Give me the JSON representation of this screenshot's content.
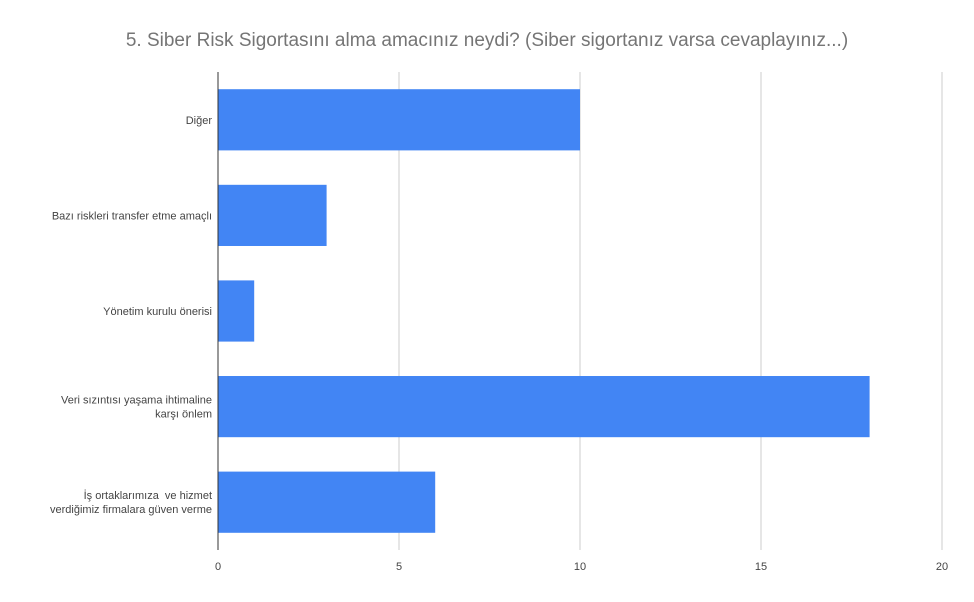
{
  "chart_data": {
    "type": "bar",
    "orientation": "horizontal",
    "title": "5. Siber Risk Sigortasını alma amacınız neydi? (Siber sigortanız varsa cevaplayınız...)",
    "categories": [
      [
        "Diğer"
      ],
      [
        "Bazı riskleri transfer etme amaçlı"
      ],
      [
        "Yönetim kurulu önerisi"
      ],
      [
        "Veri sızıntısı yaşama ihtimaline",
        "karşı önlem"
      ],
      [
        "İş ortaklarımıza  ve hizmet",
        "verdiğimiz firmalara güven verme"
      ]
    ],
    "values": [
      10,
      3,
      1,
      18,
      6
    ],
    "xlim": [
      0,
      20
    ],
    "xticks": [
      "0",
      "5",
      "10",
      "15",
      "20"
    ],
    "grid": true,
    "legend": "none",
    "colors": {
      "bar": "#4285f4",
      "grid": "#cccccc",
      "axis": "#333333",
      "label": "#444444",
      "tick": "#444444"
    }
  }
}
